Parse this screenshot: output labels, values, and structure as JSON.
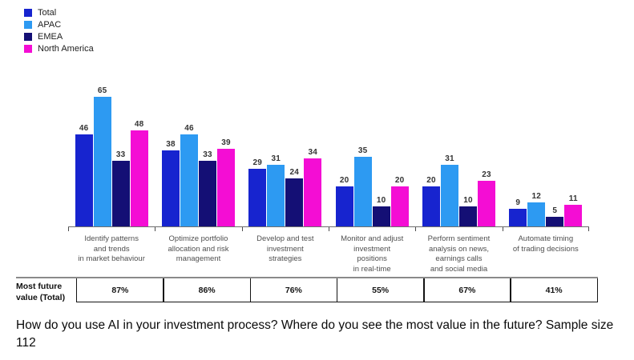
{
  "legend": {
    "items": [
      {
        "label": "Total",
        "color": "#1724cf"
      },
      {
        "label": "APAC",
        "color": "#2d9af2"
      },
      {
        "label": "EMEA",
        "color": "#140f75"
      },
      {
        "label": "North America",
        "color": "#f40dd4"
      }
    ]
  },
  "chart_data": {
    "type": "bar",
    "title": "",
    "xlabel": "",
    "ylabel": "",
    "ylim": [
      0,
      70
    ],
    "grid": false,
    "legend_position": "top-left",
    "value_labels": true,
    "categories": [
      "Identify patterns\nand trends\nin market behaviour",
      "Optimize portfolio\nallocation and risk\nmanagement",
      "Develop and test\ninvestment\nstrategies",
      "Monitor and adjust\ninvestment\npositions\nin real-time",
      "Perform sentiment\nanalysis on news,\nearnings calls\nand social media",
      "Automate timing\nof trading decisions"
    ],
    "series": [
      {
        "name": "Total",
        "color": "#1724cf",
        "values": [
          46,
          38,
          29,
          20,
          20,
          9
        ]
      },
      {
        "name": "APAC",
        "color": "#2d9af2",
        "values": [
          65,
          46,
          31,
          35,
          31,
          12
        ]
      },
      {
        "name": "EMEA",
        "color": "#140f75",
        "values": [
          33,
          33,
          24,
          10,
          10,
          5
        ]
      },
      {
        "name": "North America",
        "color": "#f40dd4",
        "values": [
          48,
          39,
          34,
          20,
          23,
          11
        ]
      }
    ]
  },
  "table": {
    "row_label": "Most future value (Total)",
    "values": [
      "87%",
      "86%",
      "76%",
      "55%",
      "67%",
      "41%"
    ]
  },
  "caption": {
    "line1": "How do you use AI in your investment process? Where do you see the most value in the future? Sample size",
    "line2": "112"
  }
}
